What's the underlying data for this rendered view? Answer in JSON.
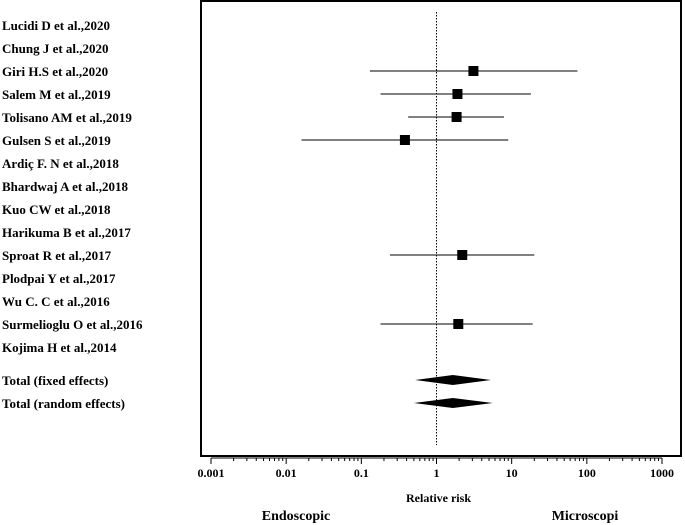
{
  "chart_data": {
    "type": "forest",
    "xscale": "log",
    "xlim": [
      0.001,
      1000
    ],
    "reference_line": 1,
    "xlabel": "Relative risk",
    "ticks": [
      {
        "value": 0.001,
        "label": "0.001"
      },
      {
        "value": 0.01,
        "label": "0.01"
      },
      {
        "value": 0.1,
        "label": "0.1"
      },
      {
        "value": 1,
        "label": "1"
      },
      {
        "value": 10,
        "label": "10"
      },
      {
        "value": 100,
        "label": "100"
      },
      {
        "value": 1000,
        "label": "1000"
      }
    ],
    "left_label": "Endoscopic",
    "right_label": "Microscopi",
    "studies": [
      {
        "label": "Lucidi D et al.,2020",
        "estimate": null,
        "ci": null
      },
      {
        "label": "Chung J et al.,2020",
        "estimate": null,
        "ci": null
      },
      {
        "label": "Giri H.S et al.,2020",
        "estimate": 3.1,
        "ci": [
          0.13,
          75
        ]
      },
      {
        "label": "Salem M et al.,2019",
        "estimate": 1.9,
        "ci": [
          0.18,
          18
        ]
      },
      {
        "label": "Tolisano AM et al.,2019",
        "estimate": 1.85,
        "ci": [
          0.42,
          7.9
        ]
      },
      {
        "label": "Gulsen S et al.,2019",
        "estimate": 0.38,
        "ci": [
          0.016,
          9
        ]
      },
      {
        "label": "Ardiç F. N et al.,2018",
        "estimate": null,
        "ci": null
      },
      {
        "label": "Bhardwaj A et al.,2018",
        "estimate": null,
        "ci": null
      },
      {
        "label": "Kuo CW et al.,2018",
        "estimate": null,
        "ci": null
      },
      {
        "label": "Harikuma B et al.,2017",
        "estimate": null,
        "ci": null
      },
      {
        "label": "Sproat R et al.,2017",
        "estimate": 2.2,
        "ci": [
          0.24,
          20
        ]
      },
      {
        "label": "Plodpai Y et al.,2017",
        "estimate": null,
        "ci": null
      },
      {
        "label": "Wu C. C et al.,2016",
        "estimate": null,
        "ci": null
      },
      {
        "label": "Surmelioglu O et al.,2016",
        "estimate": 1.95,
        "ci": [
          0.18,
          19
        ]
      },
      {
        "label": "Kojima H et al.,2014",
        "estimate": null,
        "ci": null
      }
    ],
    "pooled": [
      {
        "label": "Total (fixed effects)",
        "estimate": 1.65,
        "ci": [
          0.52,
          5.3
        ]
      },
      {
        "label": "Total (random effects)",
        "estimate": 1.65,
        "ci": [
          0.5,
          5.6
        ]
      }
    ]
  }
}
